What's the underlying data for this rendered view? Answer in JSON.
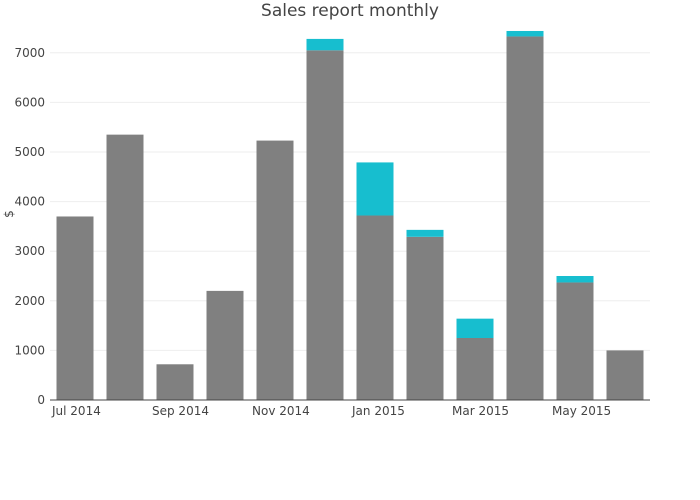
{
  "chart_data": {
    "type": "bar",
    "barmode": "stack",
    "title": "Sales report monthly",
    "xlabel": "",
    "ylabel": "$",
    "x": [
      "2014-07",
      "2014-08",
      "2014-09",
      "2014-10",
      "2014-11",
      "2014-12",
      "2015-01",
      "2015-02",
      "2015-03",
      "2015-04",
      "2015-05",
      "2015-06"
    ],
    "x_ticks": [
      {
        "label": "Jul 2014",
        "at": "2014-07"
      },
      {
        "label": "Sep 2014",
        "at": "2014-09"
      },
      {
        "label": "Nov 2014",
        "at": "2014-11"
      },
      {
        "label": "Jan 2015",
        "at": "2015-01"
      },
      {
        "label": "Mar 2015",
        "at": "2015-03"
      },
      {
        "label": "May 2015",
        "at": "2015-05"
      }
    ],
    "series": [
      {
        "color": "#808080",
        "values": [
          3700,
          5350,
          720,
          2200,
          5230,
          7050,
          3720,
          3290,
          1250,
          7330,
          2370,
          1000
        ]
      },
      {
        "color": "#17becf",
        "values": [
          0,
          0,
          0,
          0,
          0,
          230,
          1070,
          140,
          390,
          110,
          130,
          0
        ]
      }
    ],
    "ylim": [
      0,
      7500
    ],
    "y_ticks": [
      0,
      1000,
      2000,
      3000,
      4000,
      5000,
      6000,
      7000
    ],
    "grid": true,
    "legend": "none"
  }
}
